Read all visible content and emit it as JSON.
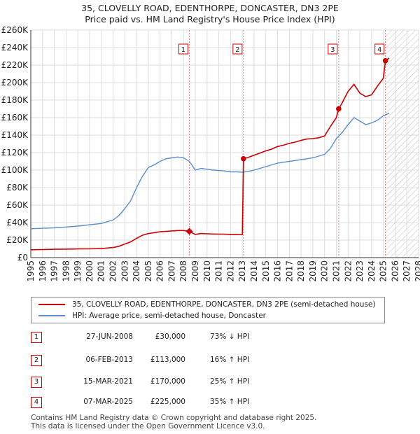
{
  "title_line1": "35, CLOVELLY ROAD, EDENTHORPE, DONCASTER, DN3 2PE",
  "title_line2": "Price paid vs. HM Land Registry's House Price Index (HPI)",
  "legend": {
    "property_label": "35, CLOVELLY ROAD, EDENTHORPE, DONCASTER, DN3 2PE (semi-detached house)",
    "hpi_label": "HPI: Average price, semi-detached house, Doncaster"
  },
  "colors": {
    "property": "#cc0000",
    "hpi": "#5b8ccc",
    "grid": "#dddddd",
    "marker_line": "#e08080",
    "axis": "#333333"
  },
  "sales": [
    {
      "num": "1",
      "date": "27-JUN-2008",
      "price": "£30,000",
      "hpi_change": "73% ↓ HPI"
    },
    {
      "num": "2",
      "date": "06-FEB-2013",
      "price": "£113,000",
      "hpi_change": "16% ↑ HPI"
    },
    {
      "num": "3",
      "date": "15-MAR-2021",
      "price": "£170,000",
      "hpi_change": "25% ↑ HPI"
    },
    {
      "num": "4",
      "date": "07-MAR-2025",
      "price": "£225,000",
      "hpi_change": "35% ↑ HPI"
    }
  ],
  "footer_line1": "Contains HM Land Registry data © Crown copyright and database right 2025.",
  "footer_line2": "This data is licensed under the Open Government Licence v3.0.",
  "chart_data": {
    "type": "line",
    "title": "35, CLOVELLY ROAD, EDENTHORPE, DONCASTER, DN3 2PE — Price paid vs. HM Land Registry's House Price Index (HPI)",
    "xlabel": "",
    "ylabel": "",
    "xlim": [
      1995,
      2028
    ],
    "ylim": [
      0,
      260000
    ],
    "x_ticks": [
      1995,
      1996,
      1997,
      1998,
      1999,
      2000,
      2001,
      2002,
      2003,
      2004,
      2005,
      2006,
      2007,
      2008,
      2009,
      2010,
      2011,
      2012,
      2013,
      2014,
      2015,
      2016,
      2017,
      2018,
      2019,
      2020,
      2021,
      2022,
      2023,
      2024,
      2025,
      2026,
      2027,
      2028
    ],
    "y_ticks": [
      0,
      20000,
      40000,
      60000,
      80000,
      100000,
      120000,
      140000,
      160000,
      180000,
      200000,
      220000,
      240000,
      260000
    ],
    "y_tick_labels": [
      "£0",
      "£20K",
      "£40K",
      "£60K",
      "£80K",
      "£100K",
      "£120K",
      "£140K",
      "£160K",
      "£180K",
      "£200K",
      "£220K",
      "£240K",
      "£260K"
    ],
    "grid": true,
    "future_hatch_from": 2025.2,
    "sale_markers": [
      {
        "label": "1",
        "x": 2008.49,
        "y": 30000
      },
      {
        "label": "2",
        "x": 2013.1,
        "y": 113000
      },
      {
        "label": "3",
        "x": 2021.2,
        "y": 170000
      },
      {
        "label": "4",
        "x": 2025.18,
        "y": 225000
      }
    ],
    "series": [
      {
        "name": "HPI: Average price, semi-detached house, Doncaster",
        "x": [
          1995.0,
          1996.0,
          1997.0,
          1998.0,
          1999.0,
          2000.0,
          2001.0,
          2002.0,
          2002.5,
          2003.0,
          2003.5,
          2004.0,
          2004.5,
          2005.0,
          2005.5,
          2006.0,
          2006.5,
          2007.0,
          2007.5,
          2008.0,
          2008.5,
          2009.0,
          2009.5,
          2010.0,
          2010.5,
          2011.0,
          2011.5,
          2012.0,
          2012.5,
          2013.0,
          2013.5,
          2014.0,
          2014.5,
          2015.0,
          2015.5,
          2016.0,
          2016.5,
          2017.0,
          2017.5,
          2018.0,
          2018.5,
          2019.0,
          2019.5,
          2020.0,
          2020.5,
          2021.0,
          2021.5,
          2022.0,
          2022.5,
          2023.0,
          2023.5,
          2024.0,
          2024.5,
          2025.0,
          2025.5
        ],
        "y": [
          33000,
          33500,
          34000,
          35000,
          36000,
          37500,
          39000,
          43000,
          48000,
          56000,
          65000,
          80000,
          93000,
          103000,
          106000,
          110000,
          113000,
          114000,
          115000,
          114000,
          110000,
          100000,
          102000,
          101000,
          100000,
          99500,
          99000,
          98000,
          98000,
          97500,
          98500,
          100000,
          102000,
          104000,
          106000,
          108000,
          109000,
          110000,
          111000,
          112000,
          113000,
          114000,
          116000,
          118000,
          125000,
          136000,
          143000,
          152000,
          160000,
          156000,
          152000,
          154000,
          157000,
          162000,
          165000
        ]
      },
      {
        "name": "35, CLOVELLY ROAD, EDENTHORPE, DONCASTER, DN3 2PE (semi-detached house)",
        "x": [
          1995.0,
          1996.0,
          1997.0,
          1998.0,
          1999.0,
          2000.0,
          2001.0,
          2002.0,
          2002.5,
          2003.0,
          2003.5,
          2004.0,
          2004.5,
          2005.0,
          2005.5,
          2006.0,
          2006.5,
          2007.0,
          2007.5,
          2008.0,
          2008.49,
          2009.0,
          2009.5,
          2010.0,
          2010.5,
          2011.0,
          2011.5,
          2012.0,
          2012.5,
          2013.0,
          2013.1,
          2013.5,
          2014.0,
          2014.5,
          2015.0,
          2015.5,
          2016.0,
          2016.5,
          2017.0,
          2017.5,
          2018.0,
          2018.5,
          2019.0,
          2019.5,
          2020.0,
          2020.5,
          2021.0,
          2021.2,
          2021.5,
          2022.0,
          2022.5,
          2023.0,
          2023.5,
          2024.0,
          2024.5,
          2025.0,
          2025.18,
          2025.5
        ],
        "y": [
          9000,
          9200,
          9500,
          9700,
          9900,
          10000,
          10300,
          11500,
          13000,
          15500,
          18000,
          22000,
          25500,
          27500,
          28500,
          29500,
          30000,
          30500,
          31000,
          31000,
          30000,
          26500,
          27500,
          27200,
          27000,
          26800,
          26800,
          26500,
          26500,
          26400,
          113000,
          114500,
          117000,
          119500,
          122000,
          124000,
          127000,
          128500,
          130500,
          132000,
          134000,
          135500,
          136000,
          137000,
          139000,
          150000,
          160000,
          170000,
          177000,
          190000,
          198000,
          188000,
          184000,
          186000,
          196000,
          205000,
          225000,
          228000
        ]
      }
    ]
  }
}
